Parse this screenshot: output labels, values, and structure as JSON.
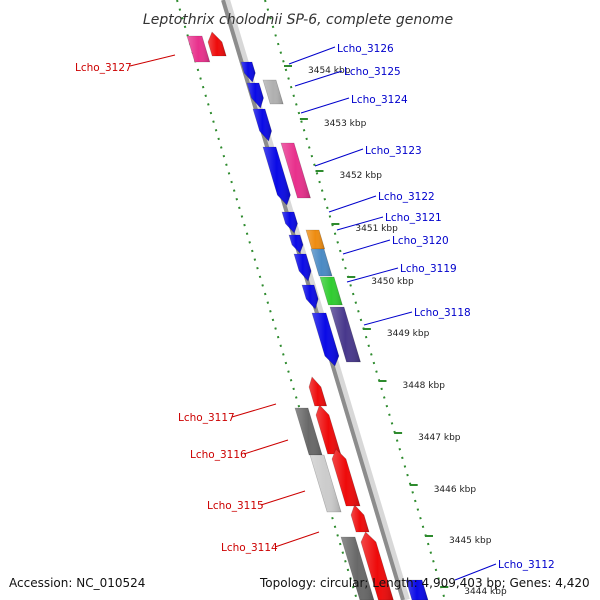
{
  "title": "Leptothrix cholodnii SP-6, complete genome",
  "footer": {
    "accession": "Accession: NC_010524",
    "topology": "Topology: circular; Length: 4,909,403 bp; Genes: 4,420"
  },
  "kbp_ticks": [
    "3454 kbp",
    "3453 kbp",
    "3452 kbp",
    "3451 kbp",
    "3450 kbp",
    "3449 kbp",
    "3448 kbp",
    "3447 kbp",
    "3446 kbp",
    "3445 kbp",
    "3444 kbp"
  ],
  "genes": [
    {
      "name": "Lcho_3127",
      "color": "#cc0000"
    },
    {
      "name": "Lcho_3126",
      "color": "#0000cc"
    },
    {
      "name": "Lcho_3125",
      "color": "#0000cc"
    },
    {
      "name": "Lcho_3124",
      "color": "#0000cc"
    },
    {
      "name": "Lcho_3123",
      "color": "#0000cc"
    },
    {
      "name": "Lcho_3122",
      "color": "#0000cc"
    },
    {
      "name": "Lcho_3121",
      "color": "#0000cc"
    },
    {
      "name": "Lcho_3120",
      "color": "#0000cc"
    },
    {
      "name": "Lcho_3119",
      "color": "#0000cc"
    },
    {
      "name": "Lcho_3118",
      "color": "#0000cc"
    },
    {
      "name": "Lcho_3117",
      "color": "#cc0000"
    },
    {
      "name": "Lcho_3116",
      "color": "#cc0000"
    },
    {
      "name": "Lcho_3115",
      "color": "#cc0000"
    },
    {
      "name": "Lcho_3114",
      "color": "#cc0000"
    },
    {
      "name": "Lcho_3112",
      "color": "#0000cc"
    }
  ],
  "colors": {
    "backbone": "#8c8c8c",
    "dotted_guide": "#2e8b2e",
    "forward_gene": "#0a0ae6",
    "reverse_gene": "#ee0a0a",
    "magenta_gene": "#e8308c",
    "gray_gene": "#b0b0b0",
    "dark_gray_gene": "#686868",
    "orange_gene": "#ee8c10",
    "steel_blue_gene": "#4a8ac4",
    "green_gene": "#30cc30",
    "indigo_gene": "#48388c",
    "light_gray_gene": "#cccccc"
  }
}
